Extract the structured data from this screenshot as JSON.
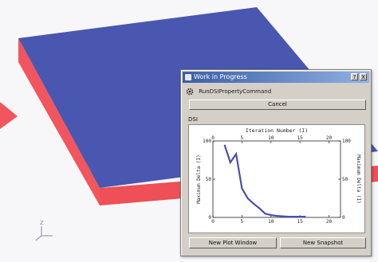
{
  "window": {
    "title": "Work in Progress",
    "help_label": "?",
    "close_label": "X"
  },
  "task": {
    "label": "RunDSIPropertyCommand"
  },
  "buttons": {
    "cancel": "Cancel",
    "new_plot_window": "New Plot Window",
    "new_snapshot": "New Snapshot"
  },
  "plot_panel": {
    "label": "DSI"
  },
  "colors": {
    "box_top": "#4a57b0",
    "box_side": "#f2555d",
    "series": "#4b4fae"
  },
  "chart_data": {
    "type": "line",
    "title": "Iteration Number (I)",
    "ylabel": "Maximum Delta (I)",
    "xlim": [
      0,
      22
    ],
    "ylim": [
      0,
      100
    ],
    "x_ticks": [
      "0",
      "5",
      "10",
      "15",
      "20"
    ],
    "y_ticks": [
      "100",
      "50",
      "0"
    ],
    "series": [
      {
        "x": [
          2,
          3,
          4,
          5,
          6,
          7,
          8,
          9,
          10,
          11,
          12,
          13,
          14,
          15,
          16
        ],
        "y": [
          95,
          72,
          83,
          38,
          25,
          18,
          12,
          5,
          3,
          2,
          1.5,
          1,
          1,
          1,
          1
        ]
      }
    ]
  }
}
